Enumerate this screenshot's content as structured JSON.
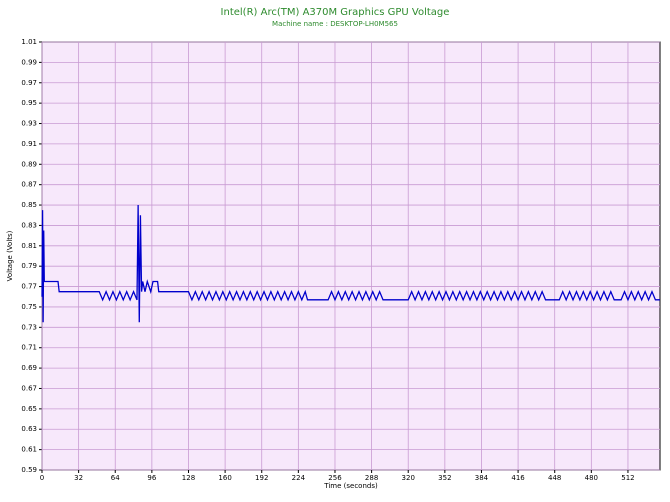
{
  "chart_data": {
    "type": "line",
    "title": "Intel(R) Arc(TM) A370M Graphics GPU Voltage",
    "subtitle": "Machine name : DESKTOP-LH0M565",
    "x_label": "Time (seconds)",
    "y_label": "Voltage (Volts)",
    "color": "#0000cc",
    "grid": true,
    "xlim": [
      0,
      540
    ],
    "ylim": [
      0.59,
      1.01
    ],
    "xticks": [
      0,
      32,
      64,
      96,
      128,
      160,
      192,
      224,
      256,
      288,
      320,
      352,
      384,
      416,
      448,
      480,
      512
    ],
    "yticks": [
      0.59,
      0.61,
      0.63,
      0.65,
      0.67,
      0.69,
      0.71,
      0.73,
      0.75,
      0.77,
      0.79,
      0.81,
      0.83,
      0.85,
      0.87,
      0.89,
      0.91,
      0.93,
      0.95,
      0.97,
      0.99,
      1.01
    ],
    "x": [
      0,
      0.5,
      1,
      1.5,
      2,
      2.5,
      3,
      14,
      15,
      50,
      53,
      56,
      59,
      62,
      65,
      68,
      71,
      74,
      77,
      80,
      83,
      84,
      85,
      86,
      87,
      88,
      90,
      92,
      95,
      97,
      101,
      102,
      128,
      131,
      134,
      137,
      140,
      143,
      146,
      149,
      152,
      155,
      158,
      161,
      164,
      167,
      170,
      173,
      176,
      179,
      182,
      185,
      188,
      191,
      194,
      197,
      200,
      203,
      206,
      209,
      212,
      215,
      218,
      221,
      224,
      227,
      230,
      232,
      250,
      253,
      256,
      259,
      262,
      265,
      268,
      271,
      274,
      277,
      280,
      283,
      286,
      289,
      292,
      295,
      298,
      320,
      323,
      326,
      329,
      332,
      335,
      338,
      341,
      344,
      347,
      350,
      353,
      356,
      359,
      362,
      365,
      368,
      371,
      374,
      377,
      380,
      383,
      386,
      389,
      392,
      395,
      398,
      401,
      404,
      407,
      410,
      413,
      416,
      419,
      422,
      425,
      428,
      431,
      434,
      437,
      440,
      452,
      455,
      458,
      461,
      464,
      467,
      470,
      473,
      476,
      479,
      482,
      485,
      488,
      491,
      494,
      497,
      500,
      506,
      509,
      512,
      515,
      518,
      521,
      524,
      527,
      530,
      533,
      536,
      540
    ],
    "values": [
      0.76,
      0.845,
      0.735,
      0.825,
      0.775,
      0.775,
      0.775,
      0.775,
      0.765,
      0.765,
      0.757,
      0.765,
      0.757,
      0.765,
      0.757,
      0.765,
      0.757,
      0.765,
      0.757,
      0.765,
      0.757,
      0.85,
      0.735,
      0.84,
      0.765,
      0.775,
      0.765,
      0.775,
      0.765,
      0.775,
      0.775,
      0.765,
      0.765,
      0.757,
      0.765,
      0.757,
      0.765,
      0.757,
      0.765,
      0.757,
      0.765,
      0.757,
      0.765,
      0.757,
      0.765,
      0.757,
      0.765,
      0.757,
      0.765,
      0.757,
      0.765,
      0.757,
      0.765,
      0.757,
      0.765,
      0.757,
      0.765,
      0.757,
      0.765,
      0.757,
      0.765,
      0.757,
      0.765,
      0.757,
      0.765,
      0.757,
      0.765,
      0.757,
      0.757,
      0.765,
      0.757,
      0.765,
      0.757,
      0.765,
      0.757,
      0.765,
      0.757,
      0.765,
      0.757,
      0.765,
      0.757,
      0.765,
      0.757,
      0.765,
      0.757,
      0.757,
      0.765,
      0.757,
      0.765,
      0.757,
      0.765,
      0.757,
      0.765,
      0.757,
      0.765,
      0.757,
      0.765,
      0.757,
      0.765,
      0.757,
      0.765,
      0.757,
      0.765,
      0.757,
      0.765,
      0.757,
      0.765,
      0.757,
      0.765,
      0.757,
      0.765,
      0.757,
      0.765,
      0.757,
      0.765,
      0.757,
      0.765,
      0.757,
      0.765,
      0.757,
      0.765,
      0.757,
      0.765,
      0.757,
      0.765,
      0.757,
      0.757,
      0.765,
      0.757,
      0.765,
      0.757,
      0.765,
      0.757,
      0.765,
      0.757,
      0.765,
      0.757,
      0.765,
      0.757,
      0.765,
      0.757,
      0.765,
      0.757,
      0.757,
      0.765,
      0.757,
      0.765,
      0.757,
      0.765,
      0.757,
      0.765,
      0.757,
      0.765,
      0.757,
      0.757
    ]
  }
}
